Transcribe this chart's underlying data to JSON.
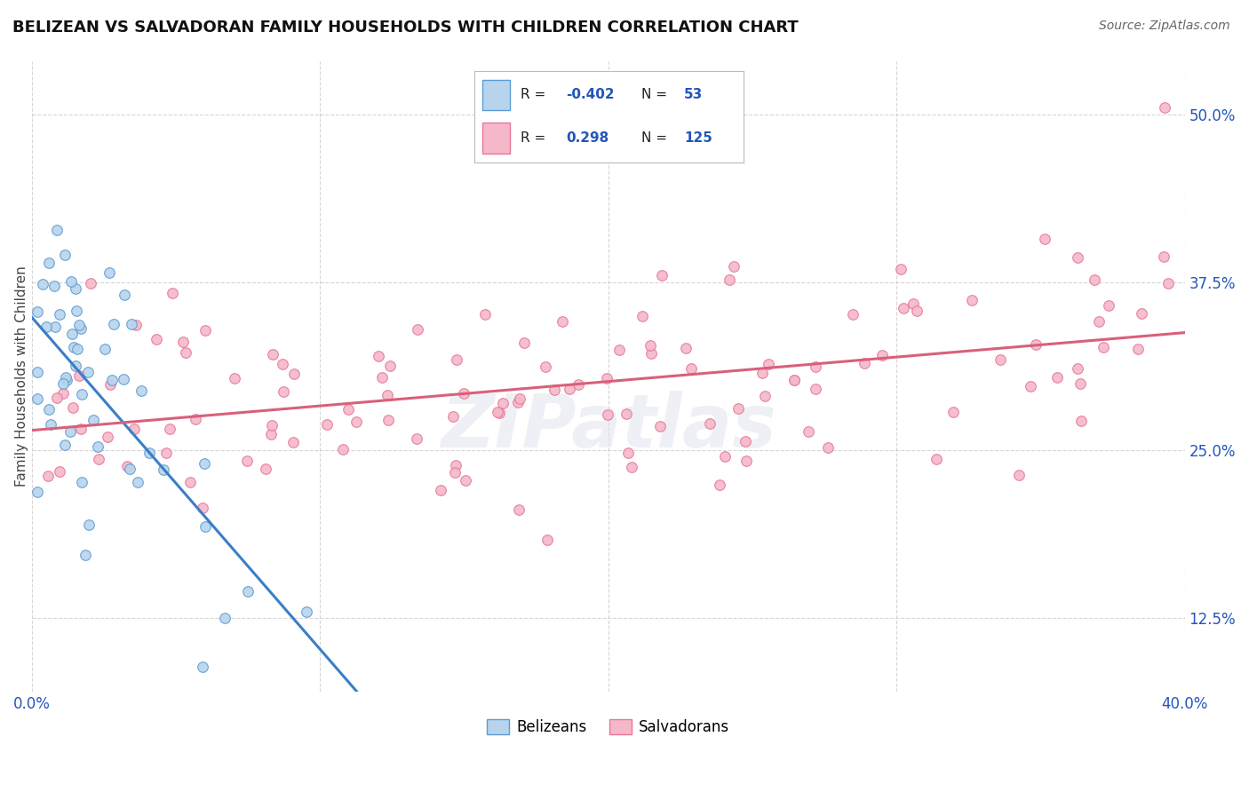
{
  "title": "BELIZEAN VS SALVADORAN FAMILY HOUSEHOLDS WITH CHILDREN CORRELATION CHART",
  "source": "Source: ZipAtlas.com",
  "ylabel": "Family Households with Children",
  "xlim": [
    0.0,
    0.4
  ],
  "ylim": [
    0.07,
    0.54
  ],
  "xtick_labels": [
    "0.0%",
    "",
    "",
    "",
    "40.0%"
  ],
  "ytick_labels": [
    "12.5%",
    "25.0%",
    "37.5%",
    "50.0%"
  ],
  "ytick_values": [
    0.125,
    0.25,
    0.375,
    0.5
  ],
  "xtick_values": [
    0.0,
    0.1,
    0.2,
    0.3,
    0.4
  ],
  "belizean_fill": "#b8d4ec",
  "belizean_edge": "#5b9bd5",
  "salvadoran_fill": "#f4b8c8",
  "salvadoran_edge": "#e8769a",
  "belizean_line_color": "#3a7ec8",
  "salvadoran_line_color": "#d9607a",
  "r_belizean": -0.402,
  "n_belizean": 53,
  "r_salvadoran": 0.298,
  "n_salvadoran": 125,
  "watermark": "ZIPatlas",
  "grid_color": "#cccccc",
  "background_color": "#ffffff",
  "legend_r_color": "#222244",
  "legend_val_color": "#2255bb"
}
